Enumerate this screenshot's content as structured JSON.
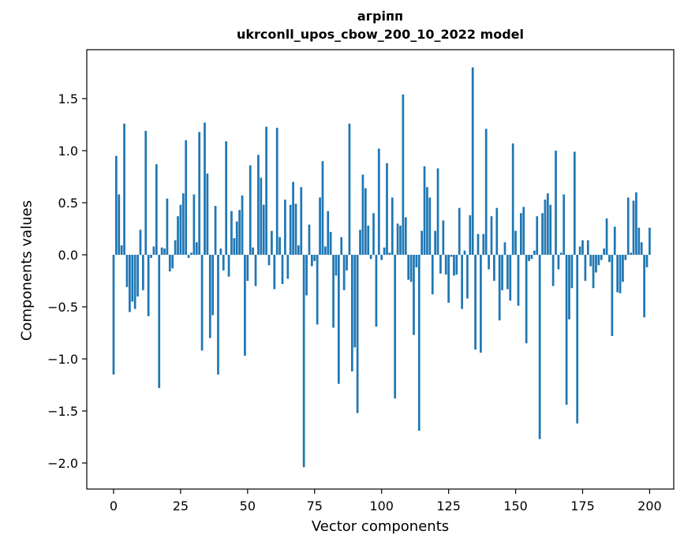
{
  "chart_data": {
    "type": "bar",
    "title": "агріпп",
    "subtitle": "ukrconll_upos_cbow_200_10_2022 model",
    "xlabel": "Vector components",
    "ylabel": "Components values",
    "xlim": [
      -10,
      209
    ],
    "ylim": [
      -2.25,
      1.97
    ],
    "xticks": [
      0,
      25,
      50,
      75,
      100,
      125,
      150,
      175,
      200
    ],
    "yticks": [
      -2.0,
      -1.5,
      -1.0,
      -0.5,
      0.0,
      0.5,
      1.0,
      1.5
    ],
    "ytick_labels": [
      "−2.0",
      "−1.5",
      "−1.0",
      "−0.5",
      "0.0",
      "0.5",
      "1.0",
      "1.5"
    ],
    "bar_color": "#1f77b4",
    "grid": false,
    "values": [
      -1.15,
      0.95,
      0.58,
      0.09,
      1.26,
      -0.31,
      -0.55,
      -0.45,
      -0.52,
      -0.4,
      0.24,
      -0.34,
      1.19,
      -0.59,
      -0.03,
      0.08,
      0.87,
      -1.28,
      0.07,
      0.06,
      0.54,
      -0.16,
      -0.13,
      0.14,
      0.37,
      0.48,
      0.59,
      1.1,
      -0.03,
      0.02,
      0.58,
      0.12,
      1.18,
      -0.92,
      1.27,
      0.78,
      -0.8,
      -0.58,
      0.47,
      -1.15,
      0.06,
      -0.15,
      1.09,
      -0.21,
      0.42,
      0.16,
      0.32,
      0.43,
      0.57,
      -0.97,
      -0.25,
      0.86,
      0.07,
      -0.3,
      0.96,
      0.74,
      0.48,
      1.23,
      -0.1,
      0.23,
      -0.33,
      1.22,
      0.17,
      -0.28,
      0.53,
      -0.23,
      0.48,
      0.7,
      0.49,
      0.09,
      0.65,
      -2.04,
      -0.39,
      0.29,
      -0.11,
      -0.06,
      -0.67,
      0.55,
      0.9,
      0.08,
      0.42,
      0.22,
      -0.7,
      -0.2,
      -1.24,
      0.17,
      -0.34,
      -0.15,
      1.26,
      -1.12,
      -0.89,
      -1.52,
      0.24,
      0.77,
      0.64,
      0.28,
      -0.04,
      0.4,
      -0.69,
      1.02,
      -0.05,
      0.07,
      0.88,
      0.02,
      0.55,
      -1.38,
      0.3,
      0.28,
      1.54,
      0.36,
      -0.24,
      -0.26,
      -0.77,
      -0.12,
      -1.69,
      0.23,
      0.85,
      0.65,
      0.55,
      -0.38,
      0.23,
      0.83,
      -0.18,
      0.33,
      -0.19,
      -0.46,
      -0.02,
      -0.2,
      -0.19,
      0.45,
      -0.52,
      0.04,
      -0.42,
      0.38,
      1.8,
      -0.91,
      0.2,
      -0.94,
      0.2,
      1.21,
      -0.14,
      0.37,
      -0.25,
      0.45,
      -0.63,
      -0.34,
      0.12,
      -0.33,
      -0.44,
      1.07,
      0.23,
      -0.49,
      0.4,
      0.46,
      -0.85,
      -0.06,
      -0.04,
      0.04,
      0.37,
      -1.77,
      0.4,
      0.53,
      0.59,
      0.48,
      -0.3,
      1.0,
      -0.14,
      0.02,
      0.58,
      -1.44,
      -0.62,
      -0.32,
      0.99,
      -1.62,
      0.08,
      0.14,
      -0.25,
      0.14,
      -0.11,
      -0.32,
      -0.17,
      -0.1,
      -0.05,
      0.06,
      0.35,
      -0.07,
      -0.78,
      0.27,
      -0.36,
      -0.37,
      -0.26,
      -0.05,
      0.55,
      0.02,
      0.52,
      0.6,
      0.26,
      0.12,
      -0.6,
      -0.12,
      0.26
    ]
  }
}
